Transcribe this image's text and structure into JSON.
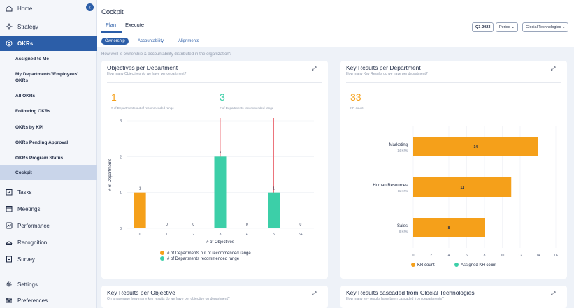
{
  "sidebar": {
    "collapse": "‹",
    "items": [
      {
        "label": "Home",
        "icon": "home-icon"
      },
      {
        "label": "Strategy",
        "icon": "strategy-icon"
      },
      {
        "label": "OKRs",
        "icon": "target-icon"
      },
      {
        "label": "Tasks",
        "icon": "tasks-icon"
      },
      {
        "label": "Meetings",
        "icon": "calendar-icon"
      },
      {
        "label": "Performance",
        "icon": "performance-icon"
      },
      {
        "label": "Recognition",
        "icon": "recognition-icon"
      },
      {
        "label": "Survey",
        "icon": "survey-icon"
      },
      {
        "label": "Settings",
        "icon": "gear-icon"
      },
      {
        "label": "Preferences",
        "icon": "sliders-icon"
      }
    ],
    "okr_sub": [
      "Assigned to Me",
      "My Departments'/Employees' OKRs",
      "All OKRs",
      "Following OKRs",
      "OKRs by KPI",
      "OKRs Pending Approval",
      "OKRs Program Status",
      "Cockpit"
    ]
  },
  "header": {
    "title": "Cockpit",
    "tabs": [
      "Plan",
      "Execute"
    ],
    "quarter": "Q3-2023",
    "period": "Period ⌄",
    "company": "Glocial Technologies ⌄"
  },
  "subtabs": [
    "Ownership",
    "Accountability",
    "Alignments"
  ],
  "hint": "How well is ownership & accountability distributed in the organization?",
  "cards": {
    "objectives": {
      "title": "Objectives per Department",
      "subtitle": "How many Objectives do we have per department?",
      "stat1": {
        "value": "1",
        "label": "# of Departments out of recommended range"
      },
      "stat2": {
        "value": "3",
        "label": "# of Departments recommended range"
      }
    },
    "kr_dept": {
      "title": "Key Results per Department",
      "subtitle": "How many Key Results do we have per department?",
      "stat": {
        "value": "33",
        "label": "KR count"
      }
    },
    "kr_obj": {
      "title": "Key Results per Objective",
      "subtitle": "On an average how many key results do we have per objective on department?"
    },
    "kr_cascade": {
      "title": "Key Results cascaded from Glocial Technologies",
      "subtitle": "How many key results have been cascaded from departments?"
    }
  },
  "colors": {
    "orange": "#f5a01a",
    "teal": "#3ccfa8",
    "red": "#e8525c",
    "blue": "#2c5ea8"
  },
  "chart_data": [
    {
      "type": "bar",
      "categories": [
        "0",
        "1",
        "2",
        "3",
        "4",
        "5",
        "5+"
      ],
      "series": [
        {
          "name": "# of Departments out of recommended range",
          "values": [
            1,
            0,
            0,
            null,
            0,
            null,
            0
          ],
          "color": "#f5a01a"
        },
        {
          "name": "# of Departments recommended range",
          "values": [
            null,
            null,
            null,
            2,
            null,
            1,
            null
          ],
          "color": "#3ccfa8"
        }
      ],
      "reference_lines_x": [
        "3",
        "5"
      ],
      "xlabel": "# of Objectives",
      "ylabel": "# of Departments",
      "ylim": [
        0,
        3
      ],
      "yticks": [
        0,
        1,
        2,
        3
      ],
      "legend": "bottom"
    },
    {
      "type": "bar",
      "orientation": "horizontal",
      "categories": [
        "Marketing",
        "Human Resources",
        "Sales"
      ],
      "sublabels": [
        "14 KRs",
        "11 KRs",
        "8 KRs"
      ],
      "series": [
        {
          "name": "KR count",
          "values": [
            14,
            11,
            8
          ],
          "color": "#f5a01a"
        },
        {
          "name": "Assigned KR count",
          "values": [
            0,
            0,
            0
          ],
          "color": "#3ccfa8"
        }
      ],
      "xlim": [
        0,
        16
      ],
      "xticks": [
        0,
        2,
        4,
        6,
        8,
        10,
        12,
        14,
        16
      ],
      "legend": "bottom"
    }
  ]
}
